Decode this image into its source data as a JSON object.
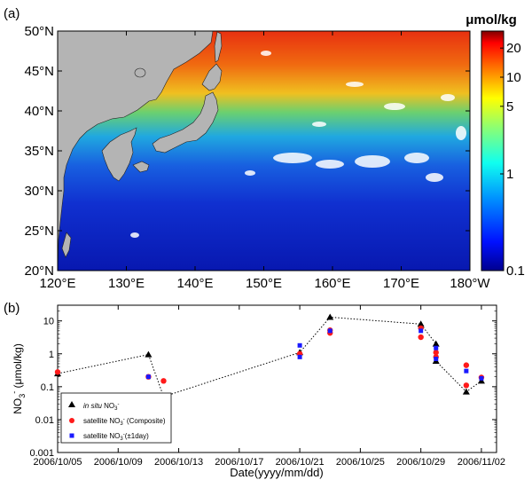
{
  "panel_a": {
    "label": "(a)",
    "colorbar_unit": "μmol/kg",
    "lat_ticks": [
      "20°N",
      "25°N",
      "30°N",
      "35°N",
      "40°N",
      "45°N",
      "50°N"
    ],
    "lon_ticks": [
      "120°E",
      "130°E",
      "140°E",
      "150°E",
      "160°E",
      "170°E",
      "180°W"
    ],
    "colorbar_ticks": [
      "20",
      "10",
      "5",
      "1",
      "0.1"
    ],
    "colorbar_values": [
      20,
      10,
      5,
      1,
      0.1
    ],
    "colorbar_range": [
      0.1,
      30
    ],
    "colors": {
      "land": "#b4b4b4",
      "low": "#1020c8",
      "high": "#e02010"
    }
  },
  "chart_data": {
    "type": "line",
    "panel_label": "(b)",
    "xlabel": "Date(yyyy/mm/dd)",
    "ylabel_main": "NO",
    "ylabel_sub": "3",
    "ylabel_sup": "-",
    "ylabel_unit": "(μmol/kg)",
    "ylim": [
      0.001,
      30
    ],
    "yscale": "log",
    "xlim": [
      "2006-10-05",
      "2006-11-03"
    ],
    "x_ticks": [
      "2006/10/05",
      "2006/10/09",
      "2006/10/13",
      "2006/10/17",
      "2006/10/21",
      "2006/10/25",
      "2006/10/29",
      "2006/11/02"
    ],
    "y_ticks": [
      "10",
      "1",
      "0.1",
      "0.01",
      "0.001"
    ],
    "legend_position": "bottom-left",
    "legend": {
      "insitu_pre": "in situ",
      "insitu_post": " NO",
      "composite_pre": "satellite NO",
      "composite_post": " (Composite)",
      "oneday_pre": "satellite NO",
      "oneday_post": "(±1day)",
      "sub": "3",
      "sup": "-"
    },
    "series": [
      {
        "name": "in situ NO3-",
        "marker": "triangle",
        "color": "#000000",
        "x": [
          "2006-10-05",
          "2006-10-11",
          "2006-10-12",
          "2006-10-21",
          "2006-10-23",
          "2006-10-29",
          "2006-10-30",
          "2006-10-30",
          "2006-11-01",
          "2006-11-02"
        ],
        "y": [
          0.25,
          0.95,
          0.05,
          1.1,
          13,
          8,
          2.0,
          0.6,
          0.07,
          0.15
        ]
      },
      {
        "name": "satellite NO3- (Composite)",
        "marker": "circle",
        "color": "#ff1a1a",
        "x": [
          "2006-10-05",
          "2006-10-11",
          "2006-10-12",
          "2006-10-21",
          "2006-10-23",
          "2006-10-23",
          "2006-10-29",
          "2006-10-29",
          "2006-10-30",
          "2006-10-30",
          "2006-11-01",
          "2006-11-01",
          "2006-11-02"
        ],
        "y": [
          0.28,
          0.2,
          0.15,
          1.0,
          5.2,
          4.3,
          6.0,
          3.2,
          1.1,
          0.8,
          0.45,
          0.11,
          0.19
        ]
      },
      {
        "name": "satellite NO3-(±1day)",
        "marker": "square",
        "color": "#1a1aff",
        "x": [
          "2006-10-11",
          "2006-10-21",
          "2006-10-21",
          "2006-10-23",
          "2006-10-29",
          "2006-10-30",
          "2006-10-30",
          "2006-11-01",
          "2006-11-02"
        ],
        "y": [
          0.2,
          1.8,
          0.8,
          5.0,
          5.0,
          1.5,
          0.7,
          0.3,
          0.18
        ]
      }
    ]
  }
}
